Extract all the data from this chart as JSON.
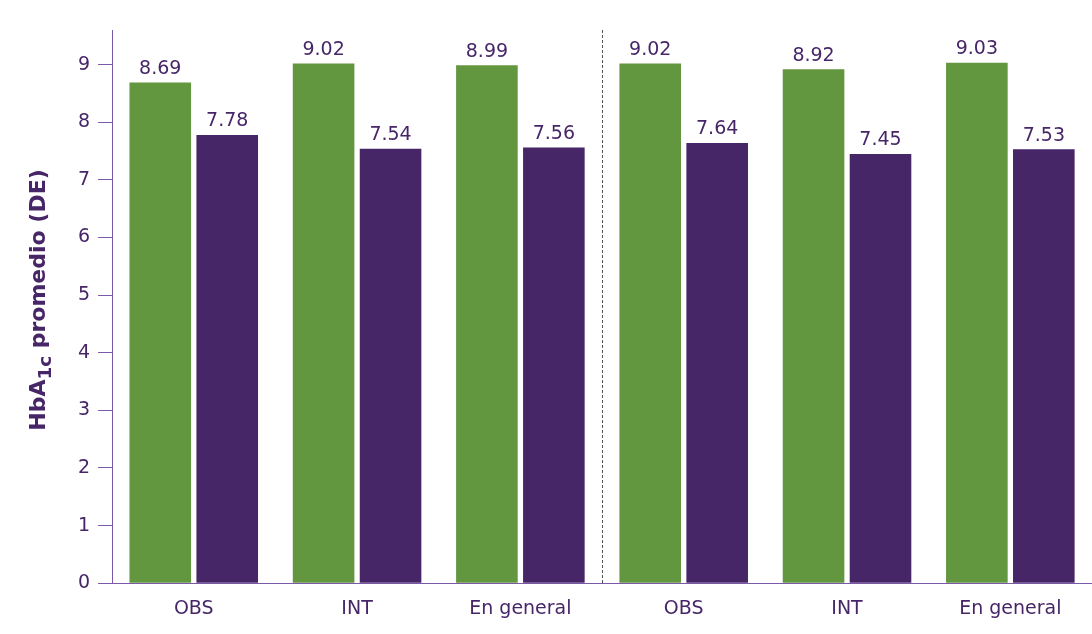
{
  "chart_data": {
    "type": "bar",
    "ylabel": "HbA$_{1c}$ promedio (DE)",
    "categories": [
      "OBS",
      "INT",
      "En general",
      "OBS",
      "INT",
      "En general"
    ],
    "series": [
      {
        "color": "#62963f",
        "values": [
          8.69,
          9.02,
          8.99,
          9.02,
          8.92,
          9.03
        ]
      },
      {
        "color": "#472668",
        "values": [
          7.78,
          7.54,
          7.56,
          7.64,
          7.45,
          7.53
        ]
      }
    ],
    "ylim": [
      0,
      9.6
    ],
    "yticks": [
      0,
      1,
      2,
      3,
      4,
      5,
      6,
      7,
      8,
      9
    ],
    "grid": false,
    "legend": false,
    "data_labels": true
  }
}
